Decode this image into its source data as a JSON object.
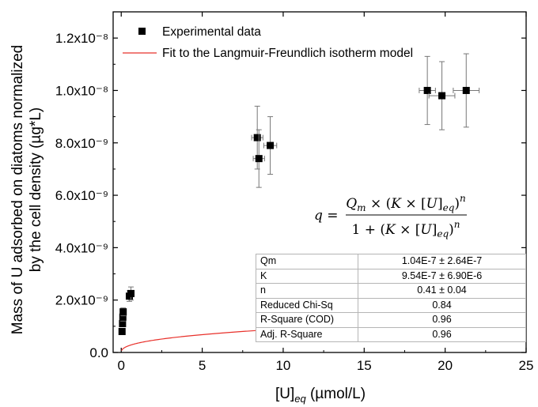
{
  "chart_data": {
    "type": "scatter",
    "xlabel": "[U]",
    "xlabel_sub": "eq",
    "xlabel_unit": " (µmol/L)",
    "ylabel_line1": "Mass of U adsorbed on diatoms normalized",
    "ylabel_line2": "by the cell density (µg*L)",
    "xlim": [
      -0.5,
      25
    ],
    "ylim": [
      0,
      1.3e-08
    ],
    "x_ticks": [
      0,
      5,
      10,
      15,
      20,
      25
    ],
    "y_ticks": [
      0,
      2e-09,
      4e-09,
      6e-09,
      8e-09,
      1e-08,
      1.2e-08
    ],
    "x_tick_labels": [
      "0",
      "5",
      "10",
      "15",
      "20",
      "25"
    ],
    "y_tick_labels": [
      "0.0",
      "2.0x10⁻⁹",
      "4.0x10⁻⁹",
      "6.0x10⁻⁹",
      "8.0x10⁻⁹",
      "1.0x10⁻⁸",
      "1.2x10⁻⁸"
    ],
    "grid": false,
    "legend_position": "top-left",
    "series": [
      {
        "name": "Experimental data",
        "marker": "square",
        "color": "#000000",
        "points": [
          {
            "x": 0.05,
            "y": 8e-10,
            "xerr": 0.05,
            "yerr": 1e-10
          },
          {
            "x": 0.08,
            "y": 1.1e-09,
            "xerr": 0.05,
            "yerr": 1e-10
          },
          {
            "x": 0.1,
            "y": 1.35e-09,
            "xerr": 0.05,
            "yerr": 1.5e-10
          },
          {
            "x": 0.12,
            "y": 1.55e-09,
            "xerr": 0.05,
            "yerr": 1.5e-10
          },
          {
            "x": 0.5,
            "y": 2.15e-09,
            "xerr": 0.1,
            "yerr": 2e-10
          },
          {
            "x": 0.6,
            "y": 2.25e-09,
            "xerr": 0.1,
            "yerr": 2.5e-10
          },
          {
            "x": 8.4,
            "y": 8.2e-09,
            "xerr": 0.35,
            "yerr": 1.2e-09
          },
          {
            "x": 8.5,
            "y": 7.4e-09,
            "xerr": 0.35,
            "yerr": 1.1e-09
          },
          {
            "x": 9.2,
            "y": 7.9e-09,
            "xerr": 0.4,
            "yerr": 1.1e-09
          },
          {
            "x": 18.9,
            "y": 1e-08,
            "xerr": 0.5,
            "yerr": 1.3e-09
          },
          {
            "x": 19.8,
            "y": 9.8e-09,
            "xerr": 0.8,
            "yerr": 1.3e-09
          },
          {
            "x": 21.3,
            "y": 1e-08,
            "xerr": 0.8,
            "yerr": 1.4e-09
          }
        ]
      },
      {
        "name": "Fit to the Langmuir-Freundlich isotherm model",
        "type": "line",
        "color": "#e8302a",
        "model": {
          "Qm": 1.04e-07,
          "K": 9.54e-07,
          "n": 0.41
        },
        "x_range": [
          0.02,
          21.3
        ]
      }
    ],
    "equation": {
      "lhs": "q =",
      "numerator": "Q_m × (K × [U]_eq)^n",
      "denominator": "1 + (K × [U]_eq)^n"
    },
    "stats_table": [
      {
        "label": "Qm",
        "value": "1.04E-7 ± 2.64E-7"
      },
      {
        "label": "K",
        "value": "9.54E-7 ± 6.90E-6"
      },
      {
        "label": "n",
        "value": "0.41 ± 0.04"
      },
      {
        "label": "Reduced Chi-Sq",
        "value": "0.84"
      },
      {
        "label": "R-Square (COD)",
        "value": "0.96"
      },
      {
        "label": "Adj. R-Square",
        "value": "0.96"
      }
    ]
  }
}
